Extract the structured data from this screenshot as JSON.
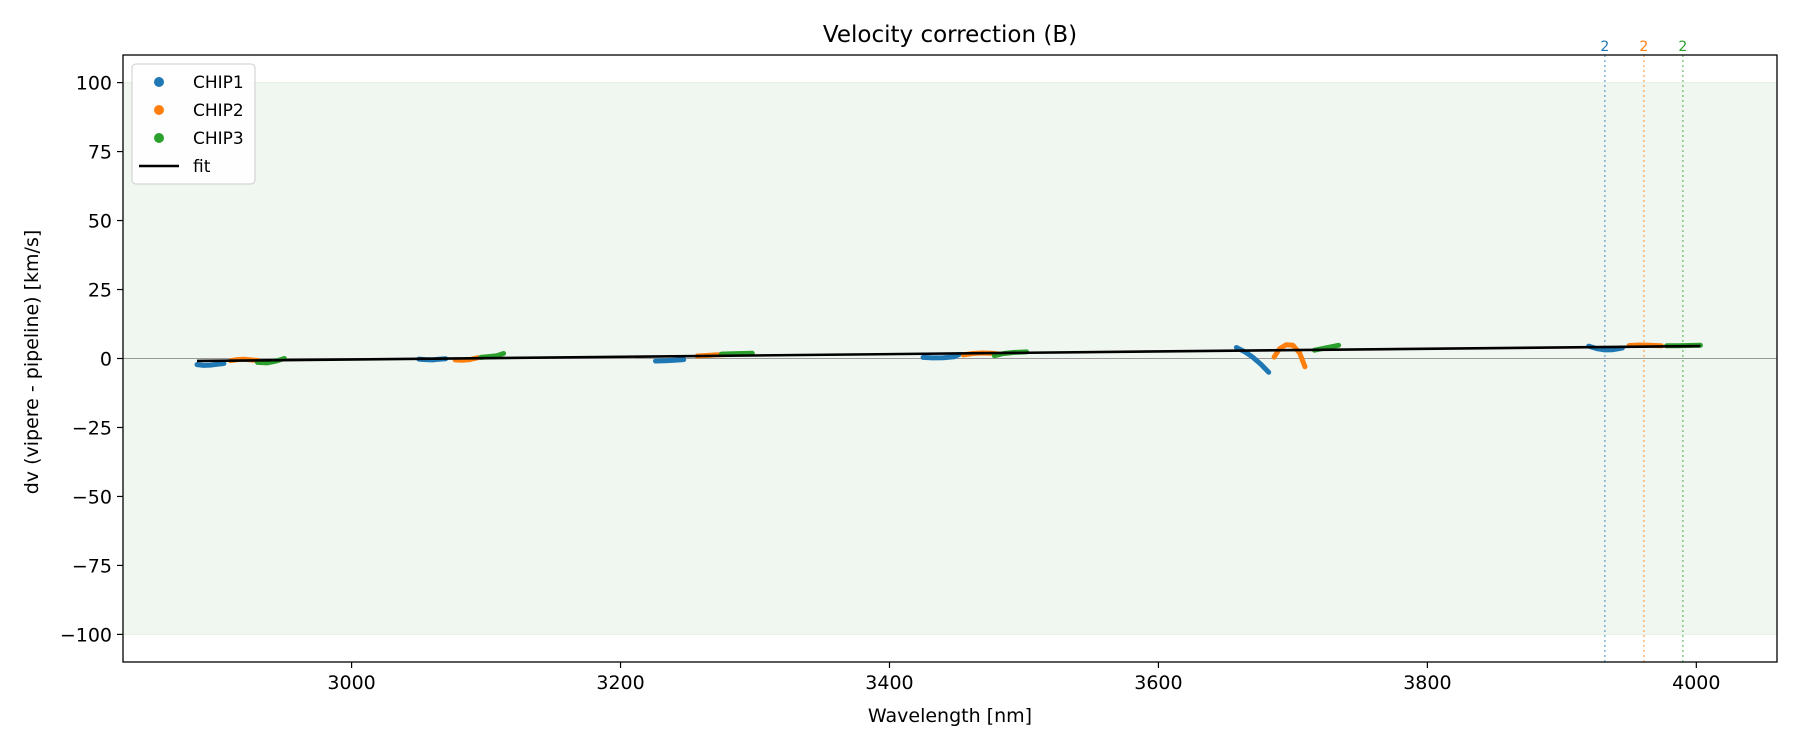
{
  "chart_data": {
    "type": "scatter",
    "title": "Velocity correction (B)",
    "xlabel": "Wavelength [nm]",
    "ylabel": "dv (vipere - pipeline) [km/s]",
    "xlim": [
      2830,
      4060
    ],
    "ylim": [
      -110,
      110
    ],
    "xticks": [
      3000,
      3200,
      3400,
      3600,
      3800,
      4000
    ],
    "xtick_labels": [
      "3000",
      "3200",
      "3400",
      "3600",
      "3800",
      "4000"
    ],
    "yticks": [
      100,
      75,
      50,
      25,
      0,
      -25,
      -50,
      -75,
      -100
    ],
    "ytick_labels": [
      "100",
      "75",
      "50",
      "25",
      "0",
      "−25",
      "−50",
      "−75",
      "−100"
    ],
    "shaded_band": [
      -100,
      100
    ],
    "zero_line": 0,
    "legend": {
      "position": "top-left",
      "entries": [
        {
          "label": "CHIP1",
          "kind": "marker",
          "color": "#1f77b4"
        },
        {
          "label": "CHIP2",
          "kind": "marker",
          "color": "#ff7f0e"
        },
        {
          "label": "CHIP3",
          "kind": "marker",
          "color": "#2ca02c"
        },
        {
          "label": "fit",
          "kind": "line",
          "color": "#000000"
        }
      ]
    },
    "series": [
      {
        "name": "CHIP1",
        "color": "#1f77b4",
        "segments": [
          [
            [
              2885,
              -2.2
            ],
            [
              2890,
              -2.5
            ],
            [
              2895,
              -2.4
            ],
            [
              2900,
              -2.1
            ],
            [
              2905,
              -1.8
            ]
          ],
          [
            [
              3050,
              -0.2
            ],
            [
              3055,
              -0.4
            ],
            [
              3060,
              -0.5
            ],
            [
              3065,
              -0.3
            ],
            [
              3070,
              -0.1
            ]
          ],
          [
            [
              3226,
              -0.9
            ],
            [
              3233,
              -0.8
            ],
            [
              3240,
              -0.6
            ],
            [
              3247,
              -0.4
            ]
          ],
          [
            [
              3425,
              0.4
            ],
            [
              3432,
              0.2
            ],
            [
              3440,
              0.3
            ],
            [
              3448,
              0.6
            ],
            [
              3452,
              1.5
            ]
          ],
          [
            [
              3658,
              4.0
            ],
            [
              3664,
              2.5
            ],
            [
              3670,
              0.5
            ],
            [
              3676,
              -2.0
            ],
            [
              3682,
              -5.0
            ]
          ],
          [
            [
              3920,
              4.5
            ],
            [
              3926,
              3.6
            ],
            [
              3932,
              3.1
            ],
            [
              3938,
              3.2
            ],
            [
              3945,
              3.8
            ]
          ]
        ]
      },
      {
        "name": "CHIP2",
        "color": "#ff7f0e",
        "segments": [
          [
            [
              2910,
              -0.8
            ],
            [
              2915,
              -0.4
            ],
            [
              2920,
              -0.3
            ],
            [
              2925,
              -0.5
            ],
            [
              2930,
              -0.7
            ]
          ],
          [
            [
              3077,
              -0.5
            ],
            [
              3082,
              -0.6
            ],
            [
              3088,
              -0.4
            ],
            [
              3094,
              0.3
            ]
          ],
          [
            [
              3257,
              0.9
            ],
            [
              3264,
              1.1
            ],
            [
              3271,
              1.3
            ],
            [
              3278,
              1.4
            ]
          ],
          [
            [
              3455,
              1.3
            ],
            [
              3462,
              1.8
            ],
            [
              3469,
              2.0
            ],
            [
              3476,
              1.9
            ],
            [
              3482,
              1.6
            ]
          ],
          [
            [
              3686,
              0.5
            ],
            [
              3690,
              3.5
            ],
            [
              3695,
              5.0
            ],
            [
              3700,
              4.8
            ],
            [
              3705,
              2.0
            ],
            [
              3709,
              -3.0
            ]
          ],
          [
            [
              3950,
              4.7
            ],
            [
              3958,
              4.9
            ],
            [
              3966,
              4.8
            ],
            [
              3974,
              4.6
            ]
          ]
        ]
      },
      {
        "name": "CHIP3",
        "color": "#2ca02c",
        "segments": [
          [
            [
              2930,
              -1.4
            ],
            [
              2937,
              -1.6
            ],
            [
              2944,
              -0.9
            ],
            [
              2950,
              0.0
            ]
          ],
          [
            [
              3096,
              0.4
            ],
            [
              3102,
              0.7
            ],
            [
              3108,
              1.0
            ],
            [
              3113,
              1.8
            ]
          ],
          [
            [
              3275,
              1.6
            ],
            [
              3283,
              1.7
            ],
            [
              3291,
              1.8
            ],
            [
              3298,
              1.9
            ]
          ],
          [
            [
              3478,
              1.0
            ],
            [
              3485,
              1.8
            ],
            [
              3493,
              2.2
            ],
            [
              3502,
              2.4
            ]
          ],
          [
            [
              3716,
              3.0
            ],
            [
              3722,
              3.6
            ],
            [
              3728,
              4.2
            ],
            [
              3734,
              4.8
            ]
          ],
          [
            [
              3978,
              4.6
            ],
            [
              3986,
              4.6
            ],
            [
              3994,
              4.7
            ],
            [
              4003,
              4.8
            ]
          ]
        ]
      }
    ],
    "fit": {
      "name": "fit",
      "color": "#000000",
      "points": [
        [
          2885,
          -0.9
        ],
        [
          4003,
          4.5
        ]
      ]
    },
    "vertical_markers": [
      {
        "x": 3932,
        "label": "2",
        "color": "#1f77b4"
      },
      {
        "x": 3961,
        "label": "2",
        "color": "#ff7f0e"
      },
      {
        "x": 3990,
        "label": "2",
        "color": "#2ca02c"
      }
    ]
  }
}
